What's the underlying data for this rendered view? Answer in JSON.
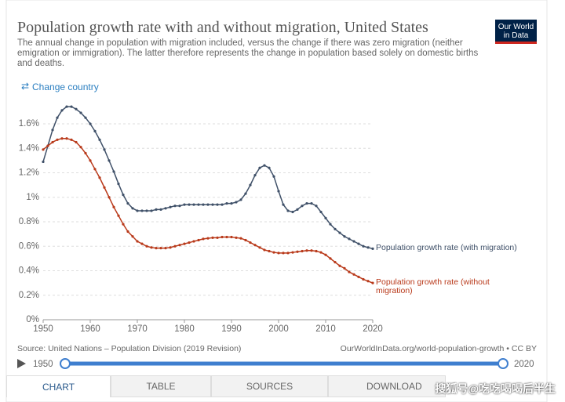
{
  "header": {
    "logo": "Our World in Data",
    "change_country": "Change country"
  },
  "chart_data": {
    "type": "line",
    "title": "Population growth rate with and without migration, United States",
    "subtitle": "The annual change in population with migration included, versus the change if there was zero migration (neither emigration or immigration). The latter therefore represents the change in population based solely on domestic births and deaths.",
    "x": [
      1950,
      1951,
      1952,
      1953,
      1954,
      1955,
      1956,
      1957,
      1958,
      1959,
      1960,
      1961,
      1962,
      1963,
      1964,
      1965,
      1966,
      1967,
      1968,
      1969,
      1970,
      1971,
      1972,
      1973,
      1974,
      1975,
      1976,
      1977,
      1978,
      1979,
      1980,
      1981,
      1982,
      1983,
      1984,
      1985,
      1986,
      1987,
      1988,
      1989,
      1990,
      1991,
      1992,
      1993,
      1994,
      1995,
      1996,
      1997,
      1998,
      1999,
      2000,
      2001,
      2002,
      2003,
      2004,
      2005,
      2006,
      2007,
      2008,
      2009,
      2010,
      2011,
      2012,
      2013,
      2014,
      2015,
      2016,
      2017,
      2018,
      2019,
      2020
    ],
    "series": [
      {
        "name": "Population growth rate (with migration)",
        "color": "#3f5068",
        "values": [
          1.29,
          1.42,
          1.55,
          1.65,
          1.71,
          1.74,
          1.74,
          1.72,
          1.69,
          1.65,
          1.6,
          1.54,
          1.47,
          1.39,
          1.3,
          1.21,
          1.11,
          1.02,
          0.95,
          0.91,
          0.89,
          0.89,
          0.89,
          0.89,
          0.9,
          0.9,
          0.91,
          0.92,
          0.93,
          0.93,
          0.94,
          0.94,
          0.94,
          0.94,
          0.94,
          0.94,
          0.94,
          0.94,
          0.94,
          0.95,
          0.95,
          0.96,
          0.98,
          1.03,
          1.1,
          1.18,
          1.24,
          1.26,
          1.24,
          1.17,
          1.05,
          0.94,
          0.89,
          0.88,
          0.9,
          0.93,
          0.95,
          0.95,
          0.93,
          0.88,
          0.83,
          0.78,
          0.74,
          0.71,
          0.68,
          0.66,
          0.64,
          0.62,
          0.6,
          0.59,
          0.58
        ]
      },
      {
        "name": "Population growth rate (without migration)",
        "color": "#b93a1b",
        "values": [
          1.39,
          1.42,
          1.45,
          1.47,
          1.48,
          1.48,
          1.47,
          1.45,
          1.41,
          1.36,
          1.3,
          1.23,
          1.16,
          1.08,
          1.0,
          0.92,
          0.85,
          0.78,
          0.72,
          0.68,
          0.64,
          0.62,
          0.6,
          0.59,
          0.585,
          0.585,
          0.585,
          0.59,
          0.6,
          0.61,
          0.62,
          0.63,
          0.64,
          0.65,
          0.66,
          0.665,
          0.67,
          0.67,
          0.675,
          0.675,
          0.675,
          0.67,
          0.665,
          0.65,
          0.63,
          0.61,
          0.59,
          0.57,
          0.56,
          0.55,
          0.545,
          0.545,
          0.545,
          0.55,
          0.555,
          0.56,
          0.565,
          0.565,
          0.56,
          0.55,
          0.53,
          0.5,
          0.47,
          0.44,
          0.42,
          0.39,
          0.37,
          0.35,
          0.33,
          0.315,
          0.3
        ]
      }
    ],
    "xlim": [
      1950,
      2020
    ],
    "xticks": [
      1950,
      1960,
      1970,
      1980,
      1990,
      2000,
      2010,
      2020
    ],
    "ylim": [
      0,
      1.8
    ],
    "yticks": [
      {
        "value": 0,
        "label": "0%"
      },
      {
        "value": 0.2,
        "label": "0.2%"
      },
      {
        "value": 0.4,
        "label": "0.4%"
      },
      {
        "value": 0.6,
        "label": "0.6%"
      },
      {
        "value": 0.8,
        "label": "0.8%"
      },
      {
        "value": 1,
        "label": "1%"
      },
      {
        "value": 1.2,
        "label": "1.2%"
      },
      {
        "value": 1.4,
        "label": "1.4%"
      },
      {
        "value": 1.6,
        "label": "1.6%"
      }
    ],
    "grid": true,
    "source": "Source: United Nations – Population Division (2019 Revision)",
    "url": "OurWorldInData.org/world-population-growth • CC BY"
  },
  "timeline": {
    "start": 1950,
    "end": 2020
  },
  "tabs": [
    "CHART",
    "TABLE",
    "SOURCES",
    "DOWNLOAD"
  ],
  "watermark": "搜狐号@吃吃喝喝后半生"
}
